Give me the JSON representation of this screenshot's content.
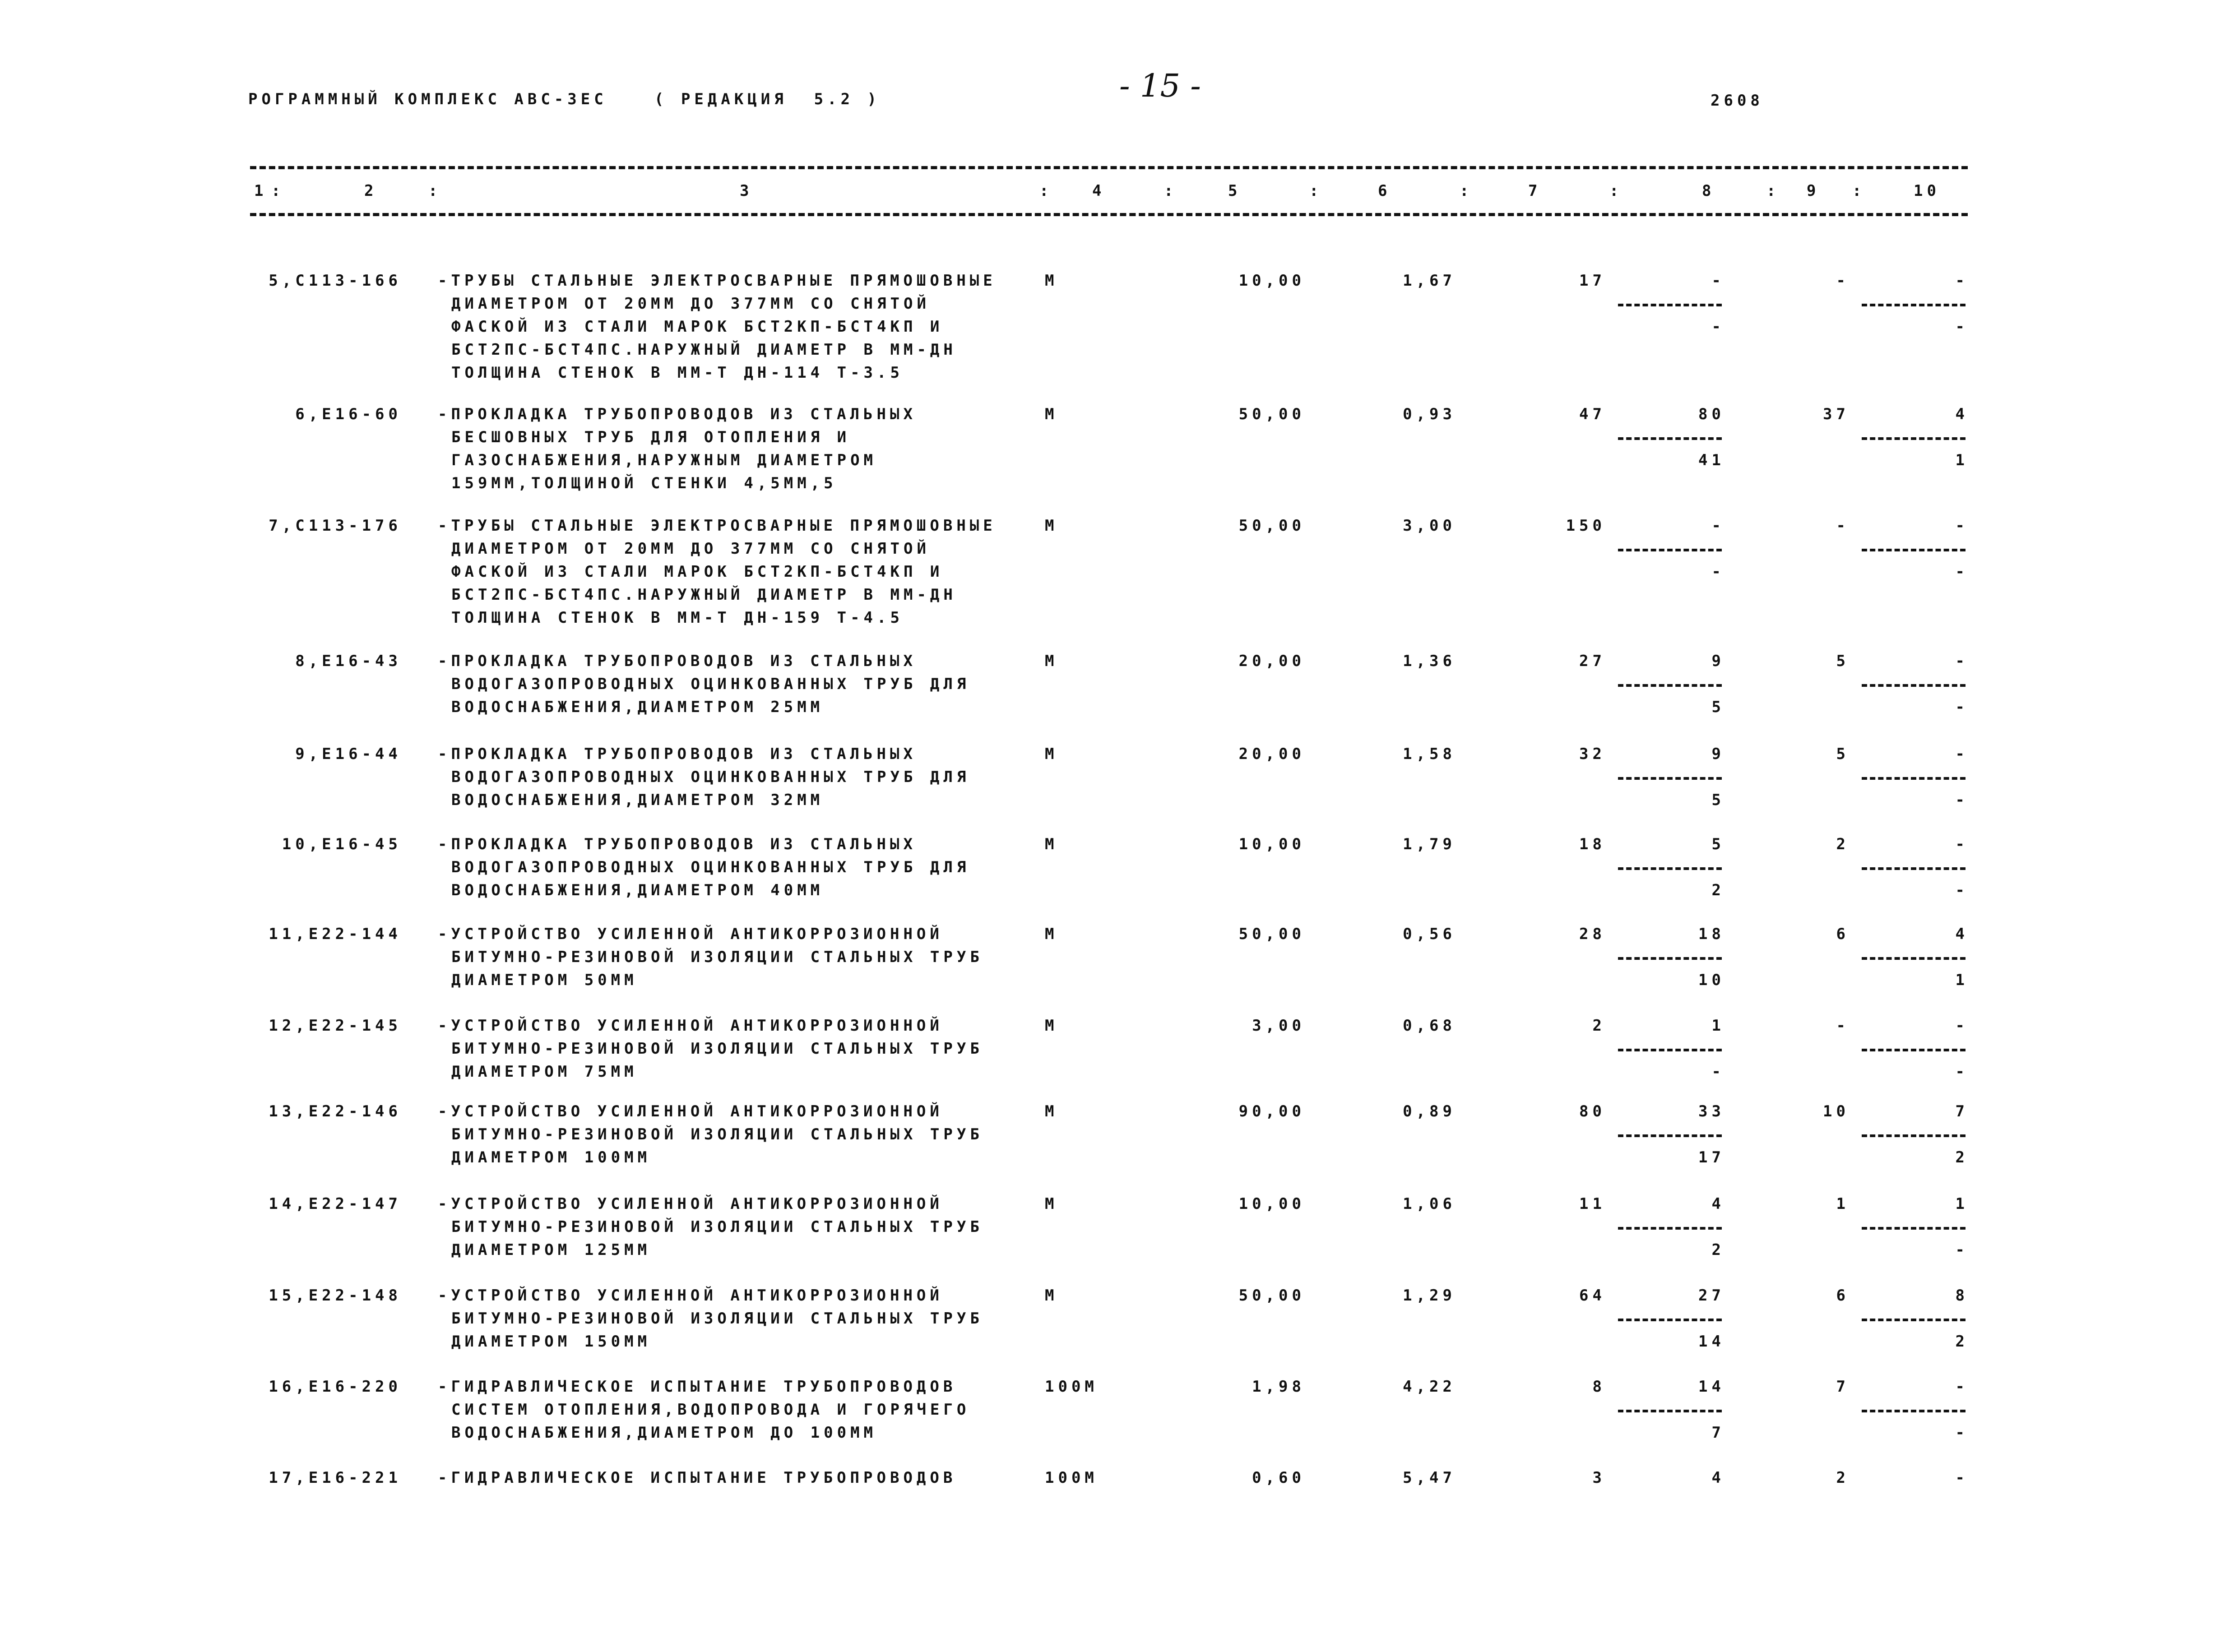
{
  "header": {
    "program": "РОГРАММНЫЙ КОМПЛЕКС АВС-3ЕС",
    "edition": "( РЕДАКЦИЯ  5.2 )",
    "page_number": "- 15 -",
    "doc_number": "2608"
  },
  "columns": [
    "1",
    "2",
    "3",
    "4",
    "5",
    "6",
    "7",
    "8",
    "9",
    "10"
  ],
  "separator": ":",
  "rows": [
    {
      "code": "5,C113-166",
      "desc": [
        "-ТРУБЫ СТАЛЬНЫЕ ЭЛЕКТРОСВАРНЫЕ ПРЯМОШОВНЫЕ",
        "ДИАМЕТРОМ ОТ 20ММ ДО 377ММ СО СНЯТОЙ",
        "ФАСКОЙ ИЗ СТАЛИ МАРОК БСТ2КП-БСТ4КП И",
        "БСТ2ПС-БСТ4ПС.НАРУЖНЫЙ ДИАМЕТР В ММ-ДН",
        "ТОЛЩИНА СТЕНОК В ММ-Т ДН-114 Т-3.5"
      ],
      "unit": "М",
      "c5": "10,00",
      "c6": "1,67",
      "c7": "17",
      "c8": [
        "-",
        "-"
      ],
      "c9": "-",
      "c10": [
        "-",
        "-"
      ]
    },
    {
      "code": "6,E16-60",
      "desc": [
        "-ПРОКЛАДКА ТРУБОПРОВОДОВ ИЗ СТАЛЬНЫХ",
        "БЕСШОВНЫХ ТРУБ ДЛЯ ОТОПЛЕНИЯ И",
        "ГАЗОСНАБЖЕНИЯ,НАРУЖНЫМ ДИАМЕТРОМ",
        "159ММ,ТОЛЩИНОЙ СТЕНКИ 4,5ММ,5"
      ],
      "unit": "М",
      "c5": "50,00",
      "c6": "0,93",
      "c7": "47",
      "c8": [
        "80",
        "41"
      ],
      "c9": "37",
      "c10": [
        "4",
        "1"
      ]
    },
    {
      "code": "7,C113-176",
      "desc": [
        "-ТРУБЫ СТАЛЬНЫЕ ЭЛЕКТРОСВАРНЫЕ ПРЯМОШОВНЫЕ",
        "ДИАМЕТРОМ ОТ 20ММ ДО 377ММ СО СНЯТОЙ",
        "ФАСКОЙ ИЗ СТАЛИ МАРОК БСТ2КП-БСТ4КП И",
        "БСТ2ПС-БСТ4ПС.НАРУЖНЫЙ ДИАМЕТР В ММ-ДН",
        "ТОЛЩИНА СТЕНОК В ММ-Т ДН-159 Т-4.5"
      ],
      "unit": "М",
      "c5": "50,00",
      "c6": "3,00",
      "c7": "150",
      "c8": [
        "-",
        "-"
      ],
      "c9": "-",
      "c10": [
        "-",
        "-"
      ]
    },
    {
      "code": "8,E16-43",
      "desc": [
        "-ПРОКЛАДКА ТРУБОПРОВОДОВ ИЗ СТАЛЬНЫХ",
        "ВОДОГАЗОПРОВОДНЫХ ОЦИНКОВАННЫХ ТРУБ ДЛЯ",
        "ВОДОСНАБЖЕНИЯ,ДИАМЕТРОМ 25ММ"
      ],
      "unit": "М",
      "c5": "20,00",
      "c6": "1,36",
      "c7": "27",
      "c8": [
        "9",
        "5"
      ],
      "c9": "5",
      "c10": [
        "-",
        "-"
      ]
    },
    {
      "code": "9,E16-44",
      "desc": [
        "-ПРОКЛАДКА ТРУБОПРОВОДОВ ИЗ СТАЛЬНЫХ",
        "ВОДОГАЗОПРОВОДНЫХ ОЦИНКОВАННЫХ ТРУБ ДЛЯ",
        "ВОДОСНАБЖЕНИЯ,ДИАМЕТРОМ 32ММ"
      ],
      "unit": "М",
      "c5": "20,00",
      "c6": "1,58",
      "c7": "32",
      "c8": [
        "9",
        "5"
      ],
      "c9": "5",
      "c10": [
        "-",
        "-"
      ]
    },
    {
      "code": "10,E16-45",
      "desc": [
        "-ПРОКЛАДКА ТРУБОПРОВОДОВ ИЗ СТАЛЬНЫХ",
        "ВОДОГАЗОПРОВОДНЫХ ОЦИНКОВАННЫХ ТРУБ ДЛЯ",
        "ВОДОСНАБЖЕНИЯ,ДИАМЕТРОМ 40ММ"
      ],
      "unit": "М",
      "c5": "10,00",
      "c6": "1,79",
      "c7": "18",
      "c8": [
        "5",
        "2"
      ],
      "c9": "2",
      "c10": [
        "-",
        "-"
      ]
    },
    {
      "code": "11,E22-144",
      "desc": [
        "-УСТРОЙСТВО УСИЛЕННОЙ АНТИКОРРОЗИОННОЙ",
        "БИТУМНО-РЕЗИНОВОЙ ИЗОЛЯЦИИ СТАЛЬНЫХ ТРУБ",
        "ДИАМЕТРОМ 50ММ"
      ],
      "unit": "М",
      "c5": "50,00",
      "c6": "0,56",
      "c7": "28",
      "c8": [
        "18",
        "10"
      ],
      "c9": "6",
      "c10": [
        "4",
        "1"
      ]
    },
    {
      "code": "12,E22-145",
      "desc": [
        "-УСТРОЙСТВО УСИЛЕННОЙ АНТИКОРРОЗИОННОЙ",
        "БИТУМНО-РЕЗИНОВОЙ ИЗОЛЯЦИИ СТАЛЬНЫХ ТРУБ",
        "ДИАМЕТРОМ 75ММ"
      ],
      "unit": "М",
      "c5": "3,00",
      "c6": "0,68",
      "c7": "2",
      "c8": [
        "1",
        "-"
      ],
      "c9": "-",
      "c10": [
        "-",
        "-"
      ]
    },
    {
      "code": "13,E22-146",
      "desc": [
        "-УСТРОЙСТВО УСИЛЕННОЙ АНТИКОРРОЗИОННОЙ",
        "БИТУМНО-РЕЗИНОВОЙ ИЗОЛЯЦИИ СТАЛЬНЫХ ТРУБ",
        "ДИАМЕТРОМ 100ММ"
      ],
      "unit": "М",
      "c5": "90,00",
      "c6": "0,89",
      "c7": "80",
      "c8": [
        "33",
        "17"
      ],
      "c9": "10",
      "c10": [
        "7",
        "2"
      ]
    },
    {
      "code": "14,E22-147",
      "desc": [
        "-УСТРОЙСТВО УСИЛЕННОЙ АНТИКОРРОЗИОННОЙ",
        "БИТУМНО-РЕЗИНОВОЙ ИЗОЛЯЦИИ СТАЛЬНЫХ ТРУБ",
        "ДИАМЕТРОМ 125ММ"
      ],
      "unit": "М",
      "c5": "10,00",
      "c6": "1,06",
      "c7": "11",
      "c8": [
        "4",
        "2"
      ],
      "c9": "1",
      "c10": [
        "1",
        "-"
      ]
    },
    {
      "code": "15,E22-148",
      "desc": [
        "-УСТРОЙСТВО УСИЛЕННОЙ АНТИКОРРОЗИОННОЙ",
        "БИТУМНО-РЕЗИНОВОЙ ИЗОЛЯЦИИ СТАЛЬНЫХ ТРУБ",
        "ДИАМЕТРОМ 150ММ"
      ],
      "unit": "М",
      "c5": "50,00",
      "c6": "1,29",
      "c7": "64",
      "c8": [
        "27",
        "14"
      ],
      "c9": "6",
      "c10": [
        "8",
        "2"
      ]
    },
    {
      "code": "16,E16-220",
      "desc": [
        "-ГИДРАВЛИЧЕСКОЕ ИСПЫТАНИЕ ТРУБОПРОВОДОВ",
        "СИСТЕМ ОТОПЛЕНИЯ,ВОДОПРОВОДА И ГОРЯЧЕГО",
        "ВОДОСНАБЖЕНИЯ,ДИАМЕТРОМ ДО 100ММ"
      ],
      "unit": "100М",
      "c5": "1,98",
      "c6": "4,22",
      "c7": "8",
      "c8": [
        "14",
        "7"
      ],
      "c9": "7",
      "c10": [
        "-",
        "-"
      ]
    },
    {
      "code": "17,E16-221",
      "desc": [
        "-ГИДРАВЛИЧЕСКОЕ ИСПЫТАНИЕ ТРУБОПРОВОДОВ"
      ],
      "unit": "100М",
      "c5": "0,60",
      "c6": "5,47",
      "c7": "3",
      "c8": [
        "4"
      ],
      "c9": "2",
      "c10": [
        "-"
      ]
    }
  ]
}
